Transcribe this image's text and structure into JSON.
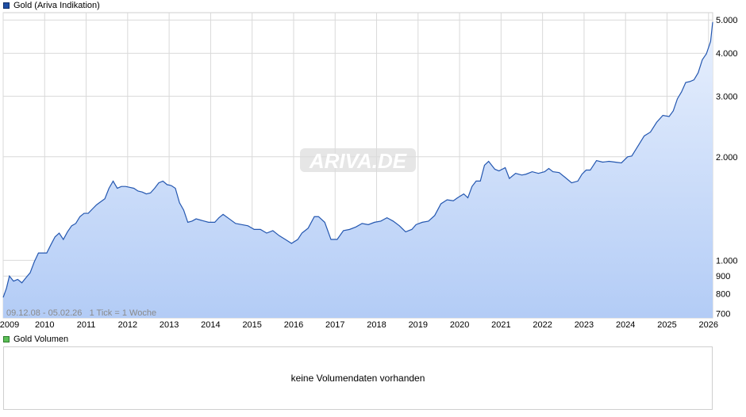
{
  "price_legend": "Gold (Ariva Indikation)",
  "volume_legend": "Gold Volumen",
  "volume_message": "keine Volumendaten vorhanden",
  "range_info": "09.12.08 - 05.02.26   1 Tick = 1 Woche",
  "watermark": "ARIVA.DE",
  "colors": {
    "line": "#2457b0",
    "fill_top": "#e8f0fd",
    "fill_bottom": "#b3ccf6",
    "grid": "#d9d9d9"
  },
  "chart_data": {
    "type": "area",
    "y_scale": "log",
    "ylim": [
      680,
      5250
    ],
    "xlim": [
      2009.0,
      2026.1
    ],
    "grid": true,
    "x_ticks": [
      {
        "v": 2009,
        "label": "2009"
      },
      {
        "v": 2010,
        "label": "2010"
      },
      {
        "v": 2011,
        "label": "2011"
      },
      {
        "v": 2012,
        "label": "2012"
      },
      {
        "v": 2013,
        "label": "2013"
      },
      {
        "v": 2014,
        "label": "2014"
      },
      {
        "v": 2015,
        "label": "2015"
      },
      {
        "v": 2016,
        "label": "2016"
      },
      {
        "v": 2017,
        "label": "2017"
      },
      {
        "v": 2018,
        "label": "2018"
      },
      {
        "v": 2019,
        "label": "2019"
      },
      {
        "v": 2020,
        "label": "2020"
      },
      {
        "v": 2021,
        "label": "2021"
      },
      {
        "v": 2022,
        "label": "2022"
      },
      {
        "v": 2023,
        "label": "2023"
      },
      {
        "v": 2024,
        "label": "2024"
      },
      {
        "v": 2025,
        "label": "2025"
      },
      {
        "v": 2026,
        "label": "2026"
      }
    ],
    "y_ticks": [
      {
        "v": 700,
        "label": "700"
      },
      {
        "v": 800,
        "label": "800"
      },
      {
        "v": 900,
        "label": "900"
      },
      {
        "v": 1000,
        "label": "1.000"
      },
      {
        "v": 2000,
        "label": "2.000"
      },
      {
        "v": 3000,
        "label": "3.000"
      },
      {
        "v": 4000,
        "label": "4.000"
      },
      {
        "v": 5000,
        "label": "5.000"
      }
    ],
    "series": [
      {
        "x": [
          2009.0,
          2009.08,
          2009.15,
          2009.25,
          2009.35,
          2009.45,
          2009.55,
          2009.65,
          2009.75,
          2009.85,
          2009.95,
          2010.05,
          2010.15,
          2010.25,
          2010.35,
          2010.45,
          2010.55,
          2010.65,
          2010.75,
          2010.85,
          2010.95,
          2011.05,
          2011.15,
          2011.25,
          2011.35,
          2011.45,
          2011.55,
          2011.65,
          2011.75,
          2011.85,
          2011.95,
          2012.05,
          2012.15,
          2012.25,
          2012.35,
          2012.45,
          2012.55,
          2012.65,
          2012.75,
          2012.85,
          2012.95,
          2013.05,
          2013.15,
          2013.25,
          2013.35,
          2013.45,
          2013.55,
          2013.65,
          2013.75,
          2013.85,
          2013.95,
          2014.1,
          2014.2,
          2014.3,
          2014.45,
          2014.6,
          2014.75,
          2014.9,
          2015.05,
          2015.2,
          2015.35,
          2015.5,
          2015.65,
          2015.8,
          2015.95,
          2016.1,
          2016.2,
          2016.35,
          2016.5,
          2016.6,
          2016.75,
          2016.9,
          2017.05,
          2017.2,
          2017.35,
          2017.5,
          2017.65,
          2017.8,
          2017.95,
          2018.1,
          2018.25,
          2018.4,
          2018.55,
          2018.7,
          2018.85,
          2018.95,
          2019.1,
          2019.25,
          2019.4,
          2019.55,
          2019.7,
          2019.85,
          2019.95,
          2020.1,
          2020.2,
          2020.3,
          2020.4,
          2020.5,
          2020.6,
          2020.7,
          2020.85,
          2020.95,
          2021.1,
          2021.2,
          2021.35,
          2021.5,
          2021.6,
          2021.75,
          2021.9,
          2022.05,
          2022.15,
          2022.25,
          2022.4,
          2022.55,
          2022.7,
          2022.85,
          2022.95,
          2023.05,
          2023.15,
          2023.3,
          2023.45,
          2023.6,
          2023.75,
          2023.9,
          2024.05,
          2024.15,
          2024.3,
          2024.45,
          2024.6,
          2024.75,
          2024.9,
          2025.05,
          2025.15,
          2025.25,
          2025.35,
          2025.45,
          2025.55,
          2025.65,
          2025.75,
          2025.85,
          2025.95,
          2026.05,
          2026.1
        ],
        "values": [
          780,
          830,
          900,
          870,
          880,
          860,
          890,
          920,
          990,
          1050,
          1050,
          1050,
          1110,
          1170,
          1200,
          1150,
          1210,
          1260,
          1280,
          1340,
          1370,
          1370,
          1410,
          1450,
          1480,
          1510,
          1620,
          1700,
          1620,
          1640,
          1640,
          1630,
          1620,
          1590,
          1580,
          1560,
          1570,
          1620,
          1680,
          1700,
          1660,
          1650,
          1620,
          1470,
          1400,
          1290,
          1300,
          1320,
          1310,
          1300,
          1290,
          1290,
          1330,
          1360,
          1320,
          1280,
          1270,
          1260,
          1230,
          1230,
          1200,
          1220,
          1180,
          1150,
          1120,
          1150,
          1200,
          1240,
          1340,
          1340,
          1290,
          1150,
          1150,
          1220,
          1230,
          1250,
          1280,
          1270,
          1290,
          1300,
          1330,
          1300,
          1260,
          1210,
          1230,
          1270,
          1290,
          1300,
          1350,
          1460,
          1500,
          1490,
          1520,
          1560,
          1520,
          1640,
          1700,
          1700,
          1890,
          1940,
          1840,
          1820,
          1860,
          1730,
          1790,
          1770,
          1780,
          1810,
          1790,
          1810,
          1850,
          1810,
          1800,
          1740,
          1680,
          1700,
          1780,
          1830,
          1830,
          1950,
          1930,
          1940,
          1930,
          1920,
          2000,
          2010,
          2150,
          2300,
          2360,
          2520,
          2640,
          2620,
          2720,
          2950,
          3090,
          3290,
          3310,
          3350,
          3510,
          3830,
          3990,
          4330,
          4930
        ]
      }
    ]
  }
}
